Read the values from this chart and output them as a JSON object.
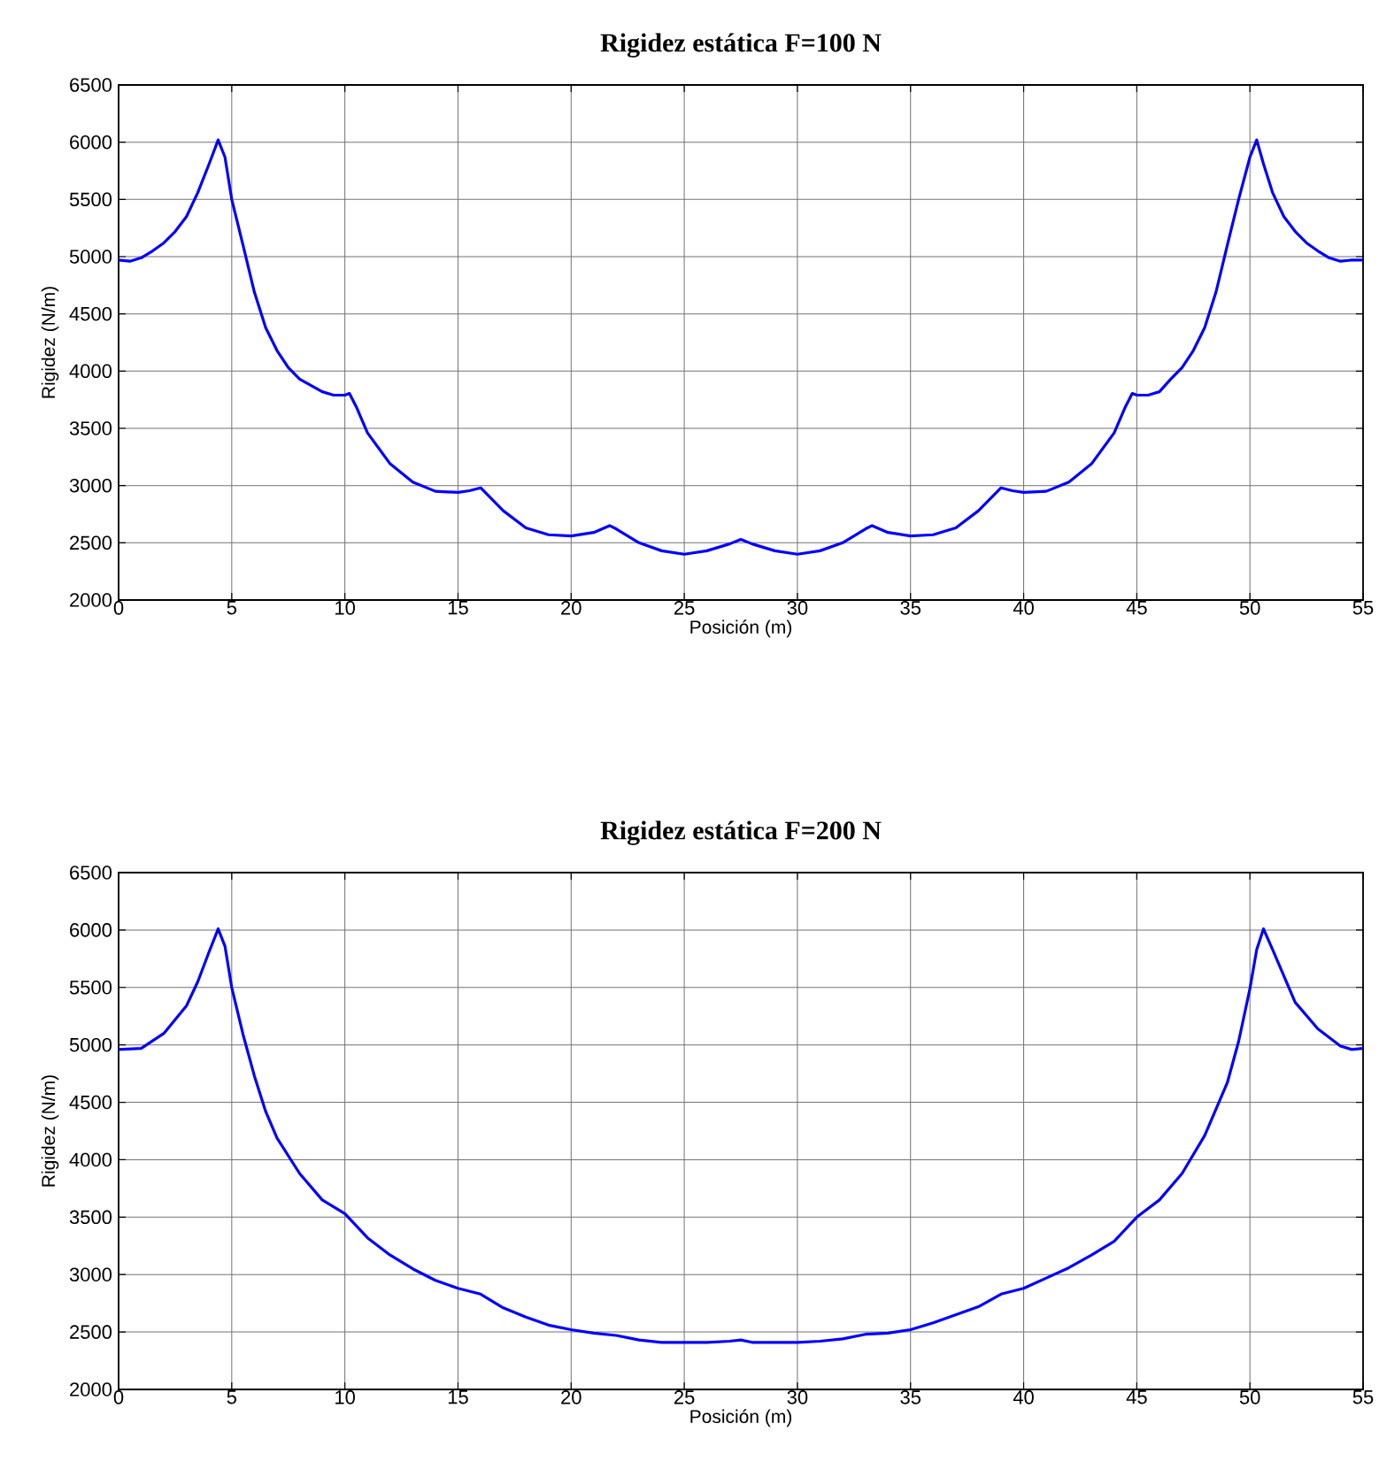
{
  "chart_data": [
    {
      "type": "line",
      "title": "Rigidez estática F=100 N",
      "xlabel": "Posición (m)",
      "ylabel": "Rigidez (N/m)",
      "x": [
        0,
        0.5,
        1,
        1.5,
        2,
        2.5,
        3,
        3.5,
        4,
        4.4,
        4.7,
        5,
        5.5,
        6,
        6.5,
        7,
        7.5,
        8,
        9,
        9.5,
        10,
        10.2,
        10.5,
        11,
        12,
        13,
        14,
        15,
        15.5,
        16,
        16.5,
        17,
        18,
        19,
        20,
        21,
        21.7,
        22,
        23,
        24,
        25,
        26,
        27,
        27.5,
        28,
        29,
        30,
        31,
        32,
        33,
        33.3,
        34,
        35,
        36,
        37,
        38,
        38.5,
        39,
        39.5,
        40,
        41,
        42,
        43,
        44,
        44.5,
        44.8,
        45,
        45.5,
        46,
        46.5,
        47,
        47.5,
        48,
        48.5,
        49,
        49.5,
        50,
        50.3,
        50.6,
        51,
        51.5,
        52,
        52.5,
        53,
        53.5,
        54,
        54.5,
        55
      ],
      "series": [
        {
          "color": "#0000ff",
          "values": [
            4970,
            4960,
            4990,
            5050,
            5120,
            5220,
            5350,
            5560,
            5810,
            6020,
            5870,
            5500,
            5100,
            4690,
            4380,
            4180,
            4030,
            3930,
            3820,
            3790,
            3790,
            3805,
            3690,
            3460,
            3190,
            3030,
            2950,
            2940,
            2955,
            2980,
            2880,
            2780,
            2630,
            2570,
            2560,
            2590,
            2650,
            2620,
            2500,
            2430,
            2400,
            2430,
            2490,
            2530,
            2490,
            2430,
            2400,
            2430,
            2500,
            2620,
            2650,
            2590,
            2560,
            2570,
            2630,
            2780,
            2880,
            2980,
            2955,
            2940,
            2950,
            3030,
            3190,
            3460,
            3690,
            3805,
            3790,
            3790,
            3820,
            3930,
            4030,
            4180,
            4380,
            4690,
            5100,
            5500,
            5870,
            6020,
            5810,
            5560,
            5350,
            5220,
            5120,
            5050,
            4990,
            4960,
            4970,
            4970
          ]
        }
      ],
      "xlim": [
        0,
        55
      ],
      "ylim": [
        2000,
        6500
      ],
      "xticks": [
        0,
        5,
        10,
        15,
        20,
        25,
        30,
        35,
        40,
        45,
        50,
        55
      ],
      "yticks": [
        2000,
        2500,
        3000,
        3500,
        4000,
        4500,
        5000,
        5500,
        6000,
        6500
      ],
      "grid": true,
      "line_style": "solid"
    },
    {
      "type": "line",
      "title": "Rigidez estática F=200 N",
      "xlabel": "Posición (m)",
      "ylabel": "Rigidez (N/m)",
      "x": [
        0,
        1,
        2,
        3,
        3.5,
        4,
        4.4,
        4.7,
        5,
        5.5,
        6,
        6.5,
        7,
        8,
        9,
        10,
        11,
        12,
        13,
        14,
        15,
        16,
        17,
        18,
        19,
        20,
        21,
        22,
        23,
        24,
        25,
        26,
        27,
        27.5,
        28,
        29,
        30,
        31,
        32,
        33,
        34,
        35,
        36,
        37,
        38,
        39,
        40,
        41,
        42,
        43,
        44,
        45,
        46,
        47,
        48,
        49,
        49.5,
        50,
        50.3,
        50.6,
        51,
        51.5,
        52,
        53,
        54,
        54.5,
        55
      ],
      "series": [
        {
          "color": "#0000ff",
          "values": [
            4960,
            4970,
            5100,
            5340,
            5550,
            5810,
            6010,
            5860,
            5500,
            5090,
            4730,
            4420,
            4190,
            3880,
            3650,
            3530,
            3320,
            3170,
            3050,
            2950,
            2880,
            2830,
            2710,
            2630,
            2560,
            2520,
            2490,
            2470,
            2430,
            2410,
            2410,
            2410,
            2420,
            2430,
            2410,
            2410,
            2410,
            2420,
            2440,
            2480,
            2490,
            2520,
            2580,
            2650,
            2720,
            2830,
            2880,
            2970,
            3060,
            3170,
            3290,
            3500,
            3650,
            3880,
            4210,
            4670,
            5030,
            5490,
            5830,
            6010,
            5830,
            5600,
            5370,
            5140,
            4990,
            4960,
            4970
          ]
        }
      ],
      "xlim": [
        0,
        55
      ],
      "ylim": [
        2000,
        6500
      ],
      "xticks": [
        0,
        5,
        10,
        15,
        20,
        25,
        30,
        35,
        40,
        45,
        50,
        55
      ],
      "yticks": [
        2000,
        2500,
        3000,
        3500,
        4000,
        4500,
        5000,
        5500,
        6000,
        6500
      ],
      "grid": true,
      "line_style": "solid"
    }
  ]
}
